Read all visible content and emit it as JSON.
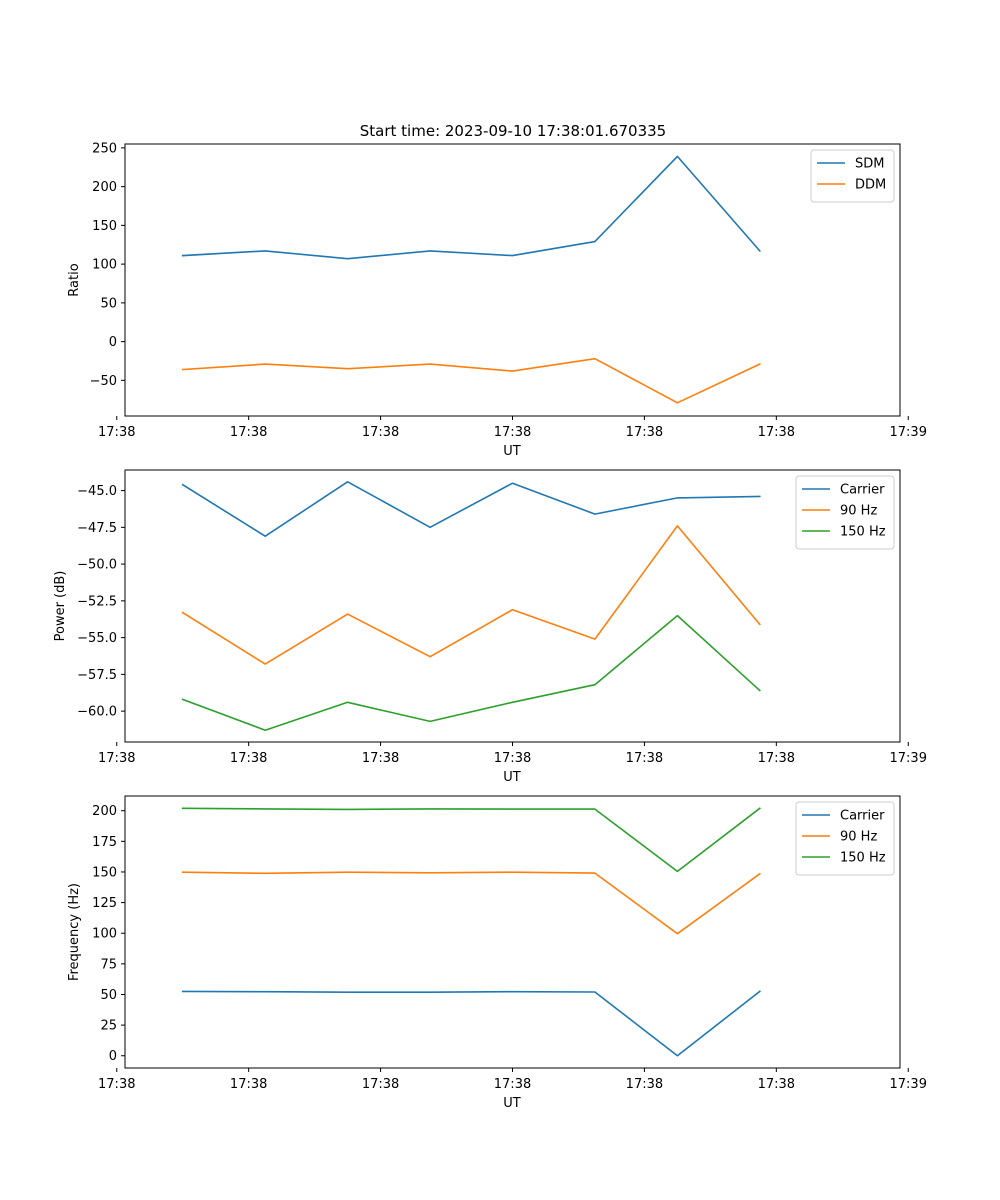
{
  "figure_title": "Start time: 2023-09-10 17:38:01.670335",
  "chart_data": [
    {
      "type": "line",
      "title": "Start time: 2023-09-10 17:38:01.670335",
      "xlabel": "UT",
      "ylabel": "Ratio",
      "x": [
        1,
        2,
        3,
        4,
        5,
        6,
        7,
        8
      ],
      "xlim": [
        0.3,
        9.7
      ],
      "xticks": [
        0.2,
        1.8,
        3.4,
        5.0,
        6.6,
        8.2,
        9.8
      ],
      "xtick_labels": [
        "17:38",
        "17:38",
        "17:38",
        "17:38",
        "17:38",
        "17:38",
        "17:39"
      ],
      "ylim": [
        -96,
        255
      ],
      "yticks": [
        -50,
        0,
        50,
        100,
        150,
        200,
        250
      ],
      "ytick_labels": [
        "−50",
        "0",
        "50",
        "100",
        "150",
        "200",
        "250"
      ],
      "legend_position": "top-right",
      "series": [
        {
          "name": "SDM",
          "color": "#1f77b4",
          "values": [
            111,
            117,
            107,
            117,
            111,
            129,
            239,
            117
          ]
        },
        {
          "name": "DDM",
          "color": "#ff7f0e",
          "values": [
            -36,
            -29,
            -35,
            -29,
            -38,
            -22,
            -79,
            -29
          ]
        }
      ]
    },
    {
      "type": "line",
      "title": "",
      "xlabel": "UT",
      "ylabel": "Power (dB)",
      "x": [
        1,
        2,
        3,
        4,
        5,
        6,
        7,
        8
      ],
      "xlim": [
        0.3,
        9.7
      ],
      "xticks": [
        0.2,
        1.8,
        3.4,
        5.0,
        6.6,
        8.2,
        9.8
      ],
      "xtick_labels": [
        "17:38",
        "17:38",
        "17:38",
        "17:38",
        "17:38",
        "17:38",
        "17:39"
      ],
      "ylim": [
        -62.1,
        -43.6
      ],
      "yticks": [
        -60.0,
        -57.5,
        -55.0,
        -52.5,
        -50.0,
        -47.5,
        -45.0
      ],
      "ytick_labels": [
        "−60.0",
        "−57.5",
        "−55.0",
        "−52.5",
        "−50.0",
        "−47.5",
        "−45.0"
      ],
      "legend_position": "top-right",
      "series": [
        {
          "name": "Carrier",
          "color": "#1f77b4",
          "values": [
            -44.6,
            -48.1,
            -44.4,
            -47.5,
            -44.5,
            -46.6,
            -45.5,
            -45.4
          ]
        },
        {
          "name": "90 Hz",
          "color": "#ff7f0e",
          "values": [
            -53.3,
            -56.8,
            -53.4,
            -56.3,
            -53.1,
            -55.1,
            -47.4,
            -54.1
          ]
        },
        {
          "name": "150 Hz",
          "color": "#2ca02c",
          "values": [
            -59.2,
            -61.3,
            -59.4,
            -60.7,
            -59.4,
            -58.2,
            -53.5,
            -58.6
          ]
        }
      ]
    },
    {
      "type": "line",
      "title": "",
      "xlabel": "UT",
      "ylabel": "Frequency (Hz)",
      "x": [
        1,
        2,
        3,
        4,
        5,
        6,
        7,
        8
      ],
      "xlim": [
        0.3,
        9.7
      ],
      "xticks": [
        0.2,
        1.8,
        3.4,
        5.0,
        6.6,
        8.2,
        9.8
      ],
      "xtick_labels": [
        "17:38",
        "17:38",
        "17:38",
        "17:38",
        "17:38",
        "17:38",
        "17:39"
      ],
      "ylim": [
        -10,
        212
      ],
      "yticks": [
        0,
        25,
        50,
        75,
        100,
        125,
        150,
        175,
        200
      ],
      "ytick_labels": [
        "0",
        "25",
        "50",
        "75",
        "100",
        "125",
        "150",
        "175",
        "200"
      ],
      "legend_position": "top-right",
      "series": [
        {
          "name": "Carrier",
          "color": "#1f77b4",
          "values": [
            52.5,
            52.3,
            51.9,
            51.9,
            52.3,
            52.0,
            0,
            52.5
          ]
        },
        {
          "name": "90 Hz",
          "color": "#ff7f0e",
          "values": [
            149.8,
            148.9,
            149.8,
            149.3,
            149.8,
            149.1,
            99.6,
            148.5
          ]
        },
        {
          "name": "150 Hz",
          "color": "#2ca02c",
          "values": [
            202.0,
            201.5,
            201.1,
            201.5,
            201.3,
            201.3,
            150.5,
            202.0
          ]
        }
      ]
    }
  ]
}
